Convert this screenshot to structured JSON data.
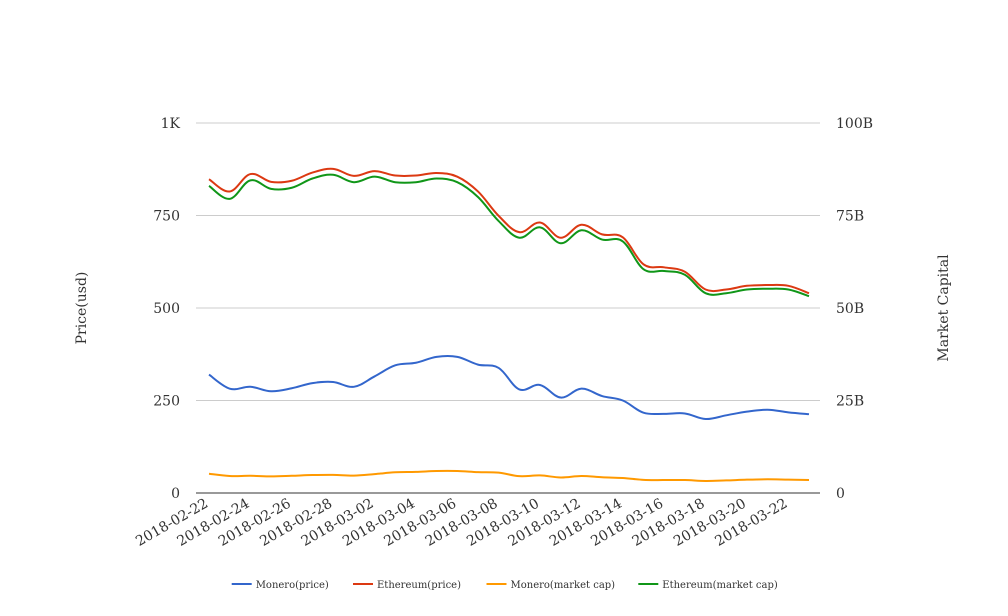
{
  "chart_data": {
    "type": "line",
    "title": "",
    "ylabel_left": "Price(usd)",
    "ylabel_right": "Market Capital",
    "ylim_left": [
      0,
      1000
    ],
    "ylim_right": [
      0,
      100000000000
    ],
    "yticks_left": [
      {
        "value": 0,
        "label": "0"
      },
      {
        "value": 250,
        "label": "250"
      },
      {
        "value": 500,
        "label": "500"
      },
      {
        "value": 750,
        "label": "750"
      },
      {
        "value": 1000,
        "label": "1K"
      }
    ],
    "yticks_right": [
      {
        "value": 0,
        "label": "0"
      },
      {
        "value": 25000000000,
        "label": "25B"
      },
      {
        "value": 50000000000,
        "label": "50B"
      },
      {
        "value": 75000000000,
        "label": "75B"
      },
      {
        "value": 100000000000,
        "label": "100B"
      }
    ],
    "grid": true,
    "legend_position": "bottom",
    "xtick_labels": [
      "2018-02-22",
      "2018-02-24",
      "2018-02-26",
      "2018-02-28",
      "2018-03-02",
      "2018-03-04",
      "2018-03-06",
      "2018-03-08",
      "2018-03-10",
      "2018-03-12",
      "2018-03-14",
      "2018-03-16",
      "2018-03-18",
      "2018-03-20",
      "2018-03-22"
    ],
    "x": [
      "2018-02-22",
      "2018-02-23",
      "2018-02-24",
      "2018-02-25",
      "2018-02-26",
      "2018-02-27",
      "2018-02-28",
      "2018-03-01",
      "2018-03-02",
      "2018-03-03",
      "2018-03-04",
      "2018-03-05",
      "2018-03-06",
      "2018-03-07",
      "2018-03-08",
      "2018-03-09",
      "2018-03-10",
      "2018-03-11",
      "2018-03-12",
      "2018-03-13",
      "2018-03-14",
      "2018-03-15",
      "2018-03-16",
      "2018-03-17",
      "2018-03-18",
      "2018-03-19",
      "2018-03-20",
      "2018-03-21",
      "2018-03-22",
      "2018-03-23"
    ],
    "series": [
      {
        "name": "Monero(price)",
        "axis": "left",
        "color": "#3366cc",
        "values": [
          320,
          282,
          287,
          275,
          283,
          297,
          300,
          287,
          315,
          345,
          352,
          368,
          368,
          347,
          338,
          280,
          292,
          258,
          282,
          262,
          250,
          217,
          214,
          215,
          200,
          210,
          220,
          225,
          218,
          213
        ]
      },
      {
        "name": "Ethereum(price)",
        "axis": "left",
        "color": "#dc3912",
        "values": [
          848,
          815,
          862,
          841,
          844,
          866,
          876,
          857,
          870,
          858,
          858,
          865,
          855,
          815,
          749,
          705,
          731,
          690,
          725,
          699,
          691,
          618,
          610,
          598,
          550,
          550,
          560,
          562,
          560,
          540
        ]
      },
      {
        "name": "Monero(market cap)",
        "axis": "right",
        "color": "#ff9900",
        "values": [
          5200000000,
          4600000000,
          4650000000,
          4500000000,
          4650000000,
          4850000000,
          4900000000,
          4700000000,
          5100000000,
          5600000000,
          5700000000,
          5950000000,
          5950000000,
          5650000000,
          5500000000,
          4550000000,
          4750000000,
          4200000000,
          4600000000,
          4250000000,
          4050000000,
          3550000000,
          3500000000,
          3500000000,
          3250000000,
          3400000000,
          3600000000,
          3700000000,
          3600000000,
          3500000000
        ]
      },
      {
        "name": "Ethereum(market cap)",
        "axis": "right",
        "color": "#109618",
        "values": [
          83000000000,
          79500000000,
          84500000000,
          82200000000,
          82500000000,
          85000000000,
          86000000000,
          84000000000,
          85500000000,
          84000000000,
          84000000000,
          85000000000,
          84000000000,
          80000000000,
          73500000000,
          69000000000,
          71800000000,
          67500000000,
          71000000000,
          68500000000,
          68000000000,
          60500000000,
          60000000000,
          59000000000,
          54000000000,
          54000000000,
          55000000000,
          55200000000,
          55000000000,
          53200000000
        ]
      }
    ]
  }
}
